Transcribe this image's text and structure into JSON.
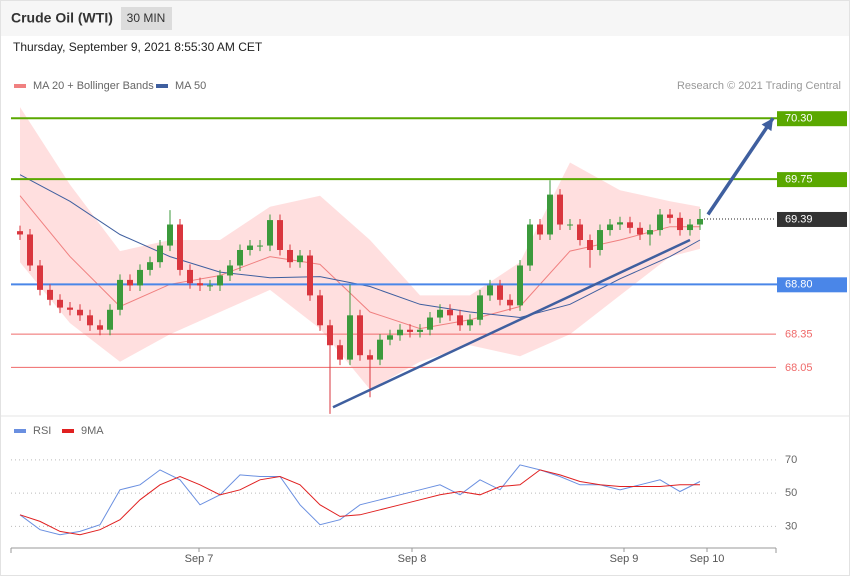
{
  "header": {
    "title": "Crude Oil (WTI)",
    "interval": "30 MIN",
    "timestamp": "Thursday, September 9, 2021 8:55:30 AM CET",
    "credit": "Research © 2021 Trading Central"
  },
  "chart_data": [
    {
      "type": "candlestick",
      "xlim": [
        -0.9,
        75.6
      ],
      "ylim": [
        67.62,
        70.69
      ],
      "up_color": "#3c9a3c",
      "down_color": "#d9363e",
      "candles": {
        "open": [
          69.28,
          69.25,
          68.97,
          68.75,
          68.66,
          68.59,
          68.57,
          68.52,
          68.43,
          68.39,
          68.57,
          68.84,
          68.79,
          68.93,
          69.0,
          69.15,
          69.34,
          68.93,
          68.81,
          68.79,
          68.79,
          68.88,
          68.97,
          69.11,
          69.15,
          69.15,
          69.38,
          69.11,
          69.0,
          69.06,
          68.7,
          68.43,
          68.25,
          68.12,
          68.52,
          68.16,
          68.12,
          68.3,
          68.34,
          68.39,
          68.37,
          68.39,
          68.5,
          68.57,
          68.52,
          68.43,
          68.48,
          68.7,
          68.79,
          68.66,
          68.61,
          68.97,
          69.34,
          69.25,
          69.61,
          69.34,
          69.34,
          69.2,
          69.11,
          69.29,
          69.34,
          69.36,
          69.31,
          69.25,
          69.29,
          69.43,
          69.4,
          69.29,
          69.34
        ],
        "high": [
          69.33,
          69.3,
          69.02,
          68.8,
          68.71,
          68.64,
          68.62,
          68.57,
          68.48,
          68.62,
          68.89,
          68.89,
          68.98,
          69.05,
          69.2,
          69.47,
          69.39,
          68.98,
          68.86,
          68.84,
          68.93,
          69.02,
          69.16,
          69.2,
          69.2,
          69.43,
          69.43,
          69.16,
          69.11,
          69.11,
          68.75,
          68.48,
          68.3,
          68.8,
          68.57,
          68.21,
          68.35,
          68.39,
          68.44,
          68.44,
          68.44,
          68.55,
          68.62,
          68.62,
          68.57,
          68.53,
          68.75,
          68.84,
          68.84,
          68.71,
          69.02,
          69.39,
          69.39,
          69.74,
          69.66,
          69.39,
          69.39,
          69.25,
          69.34,
          69.39,
          69.41,
          69.41,
          69.36,
          69.34,
          69.48,
          69.48,
          69.45,
          69.39,
          69.48
        ],
        "low": [
          69.2,
          68.92,
          68.7,
          68.61,
          68.54,
          68.52,
          68.47,
          68.38,
          68.34,
          68.34,
          68.52,
          68.74,
          68.74,
          68.88,
          68.95,
          69.1,
          68.88,
          68.76,
          68.74,
          68.74,
          68.74,
          68.83,
          68.92,
          69.06,
          69.1,
          69.1,
          69.06,
          68.95,
          68.95,
          68.65,
          68.38,
          67.63,
          68.07,
          68.07,
          68.11,
          67.78,
          68.07,
          68.25,
          68.29,
          68.32,
          68.32,
          68.34,
          68.45,
          68.47,
          68.38,
          68.38,
          68.43,
          68.65,
          68.61,
          68.56,
          68.56,
          68.92,
          69.2,
          69.2,
          69.29,
          69.29,
          69.15,
          68.95,
          69.06,
          69.24,
          69.29,
          69.26,
          69.2,
          69.15,
          69.24,
          69.35,
          69.24,
          69.24,
          69.29
        ],
        "close": [
          69.25,
          68.97,
          68.75,
          68.66,
          68.59,
          68.57,
          68.52,
          68.43,
          68.39,
          68.57,
          68.84,
          68.79,
          68.93,
          69.0,
          69.15,
          69.34,
          68.93,
          68.81,
          68.79,
          68.79,
          68.88,
          68.97,
          69.11,
          69.15,
          69.15,
          69.38,
          69.11,
          69.0,
          69.06,
          68.7,
          68.43,
          68.25,
          68.12,
          68.52,
          68.16,
          68.12,
          68.3,
          68.34,
          68.39,
          68.37,
          68.39,
          68.5,
          68.57,
          68.52,
          68.43,
          68.48,
          68.7,
          68.79,
          68.66,
          68.61,
          68.97,
          69.34,
          69.25,
          69.61,
          69.34,
          69.34,
          69.2,
          69.11,
          69.29,
          69.34,
          69.36,
          69.31,
          69.25,
          69.29,
          69.43,
          69.4,
          69.29,
          69.34,
          69.39
        ]
      },
      "bollinger": {
        "name": "MA 20 + Bollinger Bands",
        "color": "#f08080",
        "fill": "rgba(255,170,170,0.38)",
        "x": [
          0,
          5,
          10,
          15,
          20,
          25,
          30,
          35,
          40,
          45,
          50,
          55,
          60,
          65,
          68
        ],
        "upper": [
          70.4,
          69.7,
          69.1,
          69.2,
          69.2,
          69.5,
          69.6,
          69.2,
          68.7,
          68.7,
          69.0,
          69.9,
          69.65,
          69.55,
          69.5
        ],
        "mid": [
          69.6,
          69.05,
          68.6,
          68.8,
          68.88,
          69.05,
          68.98,
          68.55,
          68.4,
          68.48,
          68.6,
          69.1,
          69.2,
          69.32,
          69.32
        ],
        "lower": [
          69.0,
          68.45,
          68.1,
          68.35,
          68.55,
          68.75,
          68.4,
          67.85,
          68.1,
          68.25,
          68.15,
          68.35,
          68.7,
          69.05,
          69.12
        ]
      },
      "ma50": {
        "name": "MA 50",
        "color": "#3f5f9f",
        "x": [
          0,
          5,
          10,
          15,
          20,
          25,
          30,
          35,
          40,
          45,
          50,
          55,
          60,
          65,
          68
        ],
        "values": [
          69.79,
          69.55,
          69.25,
          69.05,
          68.91,
          68.86,
          68.87,
          68.78,
          68.62,
          68.55,
          68.5,
          68.62,
          68.85,
          69.05,
          69.2
        ]
      },
      "levels": [
        {
          "value": 70.3,
          "label": "70.30",
          "color": "#5aa800",
          "style": "box"
        },
        {
          "value": 69.75,
          "label": "69.75",
          "color": "#5aa800",
          "style": "box"
        },
        {
          "value": 68.8,
          "label": "68.80",
          "color": "#4a86e8",
          "style": "box"
        },
        {
          "value": 68.35,
          "label": "68.35",
          "color": "#ef6a6a",
          "style": "text"
        },
        {
          "value": 68.05,
          "label": "68.05",
          "color": "#ef6a6a",
          "style": "text"
        }
      ],
      "last_price": 69.39,
      "last_price_color": "#333333",
      "trendlines": [
        {
          "x": [
            31.3,
            67
          ],
          "y": [
            67.69,
            69.2
          ],
          "color": "#3f5f9f"
        }
      ],
      "arrow": {
        "x": [
          68.8,
          75.3
        ],
        "y": [
          69.43,
          70.3
        ],
        "color": "#3f5f9f"
      }
    },
    {
      "type": "line",
      "xlim": [
        -0.9,
        75.6
      ],
      "ylim": [
        17,
        94
      ],
      "yticks": [
        30,
        50,
        70
      ],
      "grid": "dotted",
      "xticks": [
        {
          "value": 17.9,
          "label": "Sep 7"
        },
        {
          "value": 39.2,
          "label": "Sep 8"
        },
        {
          "value": 60.4,
          "label": "Sep 9"
        },
        {
          "value": 68.7,
          "label": "Sep 10"
        }
      ],
      "series": [
        {
          "name": "RSI",
          "color": "#6a8fe0",
          "x": [
            0,
            2,
            4,
            6,
            8,
            10,
            12,
            14,
            16,
            18,
            20,
            22,
            24,
            26,
            28,
            30,
            32,
            34,
            36,
            38,
            40,
            42,
            44,
            46,
            48,
            50,
            52,
            54,
            56,
            58,
            60,
            62,
            64,
            66,
            68
          ],
          "values": [
            37,
            28,
            25,
            27,
            31,
            52,
            55,
            64,
            58,
            43,
            49,
            61,
            60,
            60,
            43,
            31,
            34,
            43,
            46,
            49,
            52,
            55,
            49,
            58,
            52,
            67,
            64,
            60,
            55,
            55,
            52,
            55,
            58,
            51,
            57
          ]
        },
        {
          "name": "9MA",
          "color": "#e02020",
          "x": [
            0,
            2,
            4,
            6,
            8,
            10,
            12,
            14,
            16,
            18,
            20,
            22,
            24,
            26,
            28,
            30,
            32,
            34,
            36,
            38,
            40,
            42,
            44,
            46,
            48,
            50,
            52,
            54,
            56,
            58,
            60,
            62,
            64,
            66,
            68
          ],
          "values": [
            37,
            33,
            27,
            25,
            28,
            34,
            46,
            55,
            60,
            55,
            49,
            52,
            58,
            60,
            55,
            43,
            36,
            37,
            40,
            43,
            46,
            49,
            51,
            49,
            54,
            55,
            64,
            61,
            57,
            55,
            54,
            54,
            54,
            55,
            55
          ]
        }
      ]
    }
  ]
}
